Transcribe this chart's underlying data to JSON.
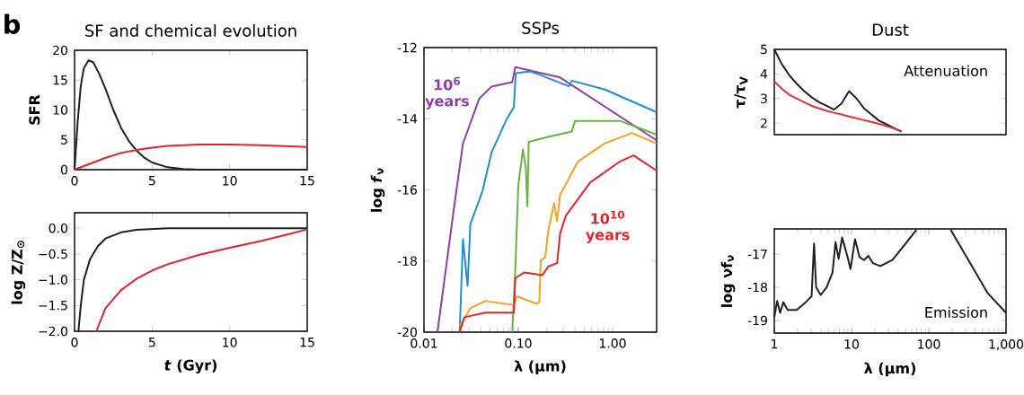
{
  "chart_data": [
    {
      "type": "line",
      "title": "SF and chemical evolution",
      "ylabel": "SFR",
      "annotations": [
        "b"
      ],
      "xlim": [
        0,
        15
      ],
      "ylim": [
        0,
        20
      ],
      "xticks": [
        0,
        5,
        10,
        15
      ],
      "yticks": [
        0,
        5,
        10,
        15,
        20
      ],
      "series": [
        {
          "color": "#231f20",
          "x": [
            0,
            0.2,
            0.4,
            0.6,
            0.9,
            1.2,
            1.6,
            2,
            2.5,
            3,
            3.5,
            4,
            4.5,
            5,
            6,
            7,
            8,
            10,
            15
          ],
          "values": [
            0,
            8,
            14,
            17,
            18.3,
            18,
            16,
            13.5,
            10,
            7,
            4.8,
            3.2,
            2,
            1.2,
            0.4,
            0.1,
            0,
            0,
            0
          ]
        },
        {
          "color": "#e2222f",
          "x": [
            0,
            1,
            2,
            3,
            4,
            5,
            6,
            8,
            10,
            12,
            15
          ],
          "values": [
            0,
            1,
            2,
            2.8,
            3.3,
            3.7,
            4,
            4.2,
            4.2,
            4.1,
            3.8
          ]
        }
      ]
    },
    {
      "type": "line",
      "xlabel": "*t* (Gyr)",
      "ylabel": "log Z/Z$_{⊙}$",
      "xlim": [
        0,
        15
      ],
      "ylim": [
        -2,
        0.3
      ],
      "xticks": [
        0,
        5,
        10,
        15
      ],
      "yticks": [
        {
          "value": -2,
          "label": "−2.0"
        },
        {
          "value": -1.5,
          "label": "−1.5"
        },
        {
          "value": -1,
          "label": "−1.0"
        },
        {
          "value": -0.5,
          "label": "−0.5"
        },
        {
          "value": 0,
          "label": "0.0"
        }
      ],
      "series": [
        {
          "color": "#231f20",
          "x": [
            0.25,
            0.4,
            0.6,
            1,
            1.5,
            2,
            3,
            4,
            6,
            15
          ],
          "values": [
            -2,
            -1.5,
            -1,
            -0.6,
            -0.35,
            -0.2,
            -0.08,
            -0.03,
            0,
            0
          ]
        },
        {
          "color": "#e2222f",
          "x": [
            1.4,
            2,
            3,
            4,
            5,
            6,
            8,
            10,
            12,
            14,
            15
          ],
          "values": [
            -2,
            -1.55,
            -1.2,
            -0.98,
            -0.82,
            -0.7,
            -0.52,
            -0.38,
            -0.25,
            -0.1,
            -0.02
          ]
        }
      ]
    },
    {
      "type": "line",
      "title": "SSPs",
      "xlabel": "λ (μm)",
      "ylabel": "log *f*$_{ν}$",
      "log": "x",
      "xlim": [
        0.01,
        2.93
      ],
      "ylim": [
        -20,
        -12
      ],
      "xticks": [
        {
          "value": 0.01,
          "label": "0.01"
        },
        {
          "value": 0.1,
          "label": "0.10"
        },
        {
          "value": 1,
          "label": "1.00"
        }
      ],
      "yticks": [
        -20,
        -18,
        -16,
        -14,
        -12
      ],
      "series": [
        {
          "name": "10$^{6}$ years",
          "color": "#8e3fa5",
          "x": [
            0.0139,
            0.0207,
            0.0259,
            0.0386,
            0.0518,
            0.0862,
            0.093,
            0.278,
            2.9
          ],
          "values": [
            -20,
            -16.55,
            -14.7,
            -13.43,
            -13.1,
            -12.97,
            -12.55,
            -12.84,
            -14.6
          ]
        },
        {
          "color": "#1f8fd0",
          "x": [
            0.0239,
            0.0259,
            0.029,
            0.031,
            0.0417,
            0.052,
            0.075,
            0.0897,
            0.094,
            0.134,
            0.167,
            0.345,
            0.37,
            0.83,
            2.9
          ],
          "values": [
            -20,
            -17.39,
            -18.7,
            -16.97,
            -16.04,
            -14.95,
            -14.02,
            -13.68,
            -12.72,
            -12.67,
            -12.76,
            -13.09,
            -12.93,
            -13.18,
            -13.81
          ]
        },
        {
          "color": "#6ab43e",
          "x": [
            0.0862,
            0.093,
            0.1,
            0.112,
            0.12,
            0.125,
            0.129,
            0.193,
            0.37,
            0.4,
            1.2,
            2.9
          ],
          "values": [
            -20,
            -18.23,
            -15.87,
            -14.86,
            -15.37,
            -16.46,
            -14.65,
            -14.53,
            -14.36,
            -14.06,
            -14.06,
            -14.44
          ]
        },
        {
          "color": "#f5a21e",
          "x": [
            0.0239,
            0.031,
            0.0448,
            0.0897,
            0.0965,
            0.155,
            0.167,
            0.173,
            0.193,
            0.208,
            0.24,
            0.258,
            0.278,
            0.43,
            0.83,
            1.6,
            2.9
          ],
          "values": [
            -19.83,
            -19.33,
            -19.12,
            -19.24,
            -18.99,
            -19.2,
            -19.16,
            -17.98,
            -17.9,
            -17.14,
            -16.38,
            -16.88,
            -16.13,
            -15.2,
            -14.69,
            -14.4,
            -14.69
          ]
        },
        {
          "name": "10$^{10}$ years",
          "color": "#e3262d",
          "x": [
            0.0239,
            0.0268,
            0.0448,
            0.0897,
            0.093,
            0.116,
            0.18,
            0.208,
            0.258,
            0.278,
            0.32,
            0.58,
            1.2,
            1.67,
            2.9
          ],
          "values": [
            -20,
            -19.58,
            -19.45,
            -19.45,
            -18.48,
            -18.32,
            -18.4,
            -18.15,
            -18.06,
            -17.22,
            -16.72,
            -15.79,
            -15.2,
            -15.03,
            -15.45
          ]
        }
      ]
    },
    {
      "type": "line",
      "title": "Dust",
      "ylabel": "τ/τ$_{V}$",
      "annotations": [
        "Attenuation"
      ],
      "tick_labels": "y",
      "ylim": [
        1.53,
        5
      ],
      "yticks": [
        2,
        3,
        4,
        5
      ],
      "categories": [
        null,
        null,
        null,
        null,
        null,
        null,
        null,
        null,
        null,
        null,
        null,
        null,
        null,
        null,
        null,
        null,
        null,
        null,
        null,
        null,
        null,
        null,
        null,
        null,
        null,
        null,
        null,
        null,
        null,
        null,
        null,
        null
      ],
      "series": [
        {
          "color": "#231f20",
          "values": [
            5.0,
            4.4,
            3.95,
            3.6,
            3.3,
            3.05,
            2.85,
            2.7,
            2.55,
            2.8,
            3.3,
            3.0,
            2.6,
            2.35,
            2.1,
            1.95,
            1.8,
            1.65,
            null,
            null,
            null,
            null,
            null,
            null,
            null,
            null,
            null,
            null,
            null,
            null,
            null,
            null
          ]
        },
        {
          "color": "#e0323c",
          "values": [
            3.7,
            3.4,
            3.15,
            3.0,
            2.85,
            2.7,
            2.6,
            2.5,
            2.42,
            2.35,
            2.27,
            2.2,
            2.12,
            2.05,
            1.97,
            1.88,
            1.78,
            1.68,
            null,
            null,
            null,
            null,
            null,
            null,
            null,
            null,
            null,
            null,
            null,
            null,
            null,
            null
          ]
        }
      ]
    },
    {
      "type": "line",
      "xlabel": "λ (μm)",
      "ylabel": "log νf$_{ν}$",
      "annotations": [
        "Emission"
      ],
      "log": "x",
      "xlim": [
        1,
        1000
      ],
      "ylim": [
        -19.38,
        -16.24
      ],
      "xticks": [
        1,
        10,
        100,
        {
          "value": 1000,
          "label": "1,000"
        }
      ],
      "yticks": [
        -19,
        -18,
        -17
      ],
      "series": [
        {
          "color": "#231f20",
          "x": [
            1,
            1.09,
            1.19,
            1.31,
            1.49,
            1.95,
            2.55,
            3.04,
            3.27,
            3.48,
            3.98,
            4.76,
            5.68,
            6.2,
            6.8,
            7.55,
            8.9,
            9.7,
            11.1,
            12.7,
            14.5,
            16.5,
            18.9,
            23.6,
            33.8,
            48.2,
            68.9,
            100,
            192,
            343,
            580,
            1000
          ],
          "values": [
            -18.91,
            -18.41,
            -18.77,
            -18.45,
            -18.68,
            -18.68,
            -18.45,
            -18.27,
            -16.68,
            -18.0,
            -18.23,
            -18.0,
            -17.55,
            -16.64,
            -17.14,
            -16.5,
            -17.09,
            -17.45,
            -16.55,
            -17.09,
            -17.18,
            -17.05,
            -17.27,
            -17.36,
            -17.18,
            -16.73,
            -16.27,
            null,
            -16.27,
            -17.27,
            -18.18,
            -18.77
          ]
        }
      ]
    }
  ]
}
